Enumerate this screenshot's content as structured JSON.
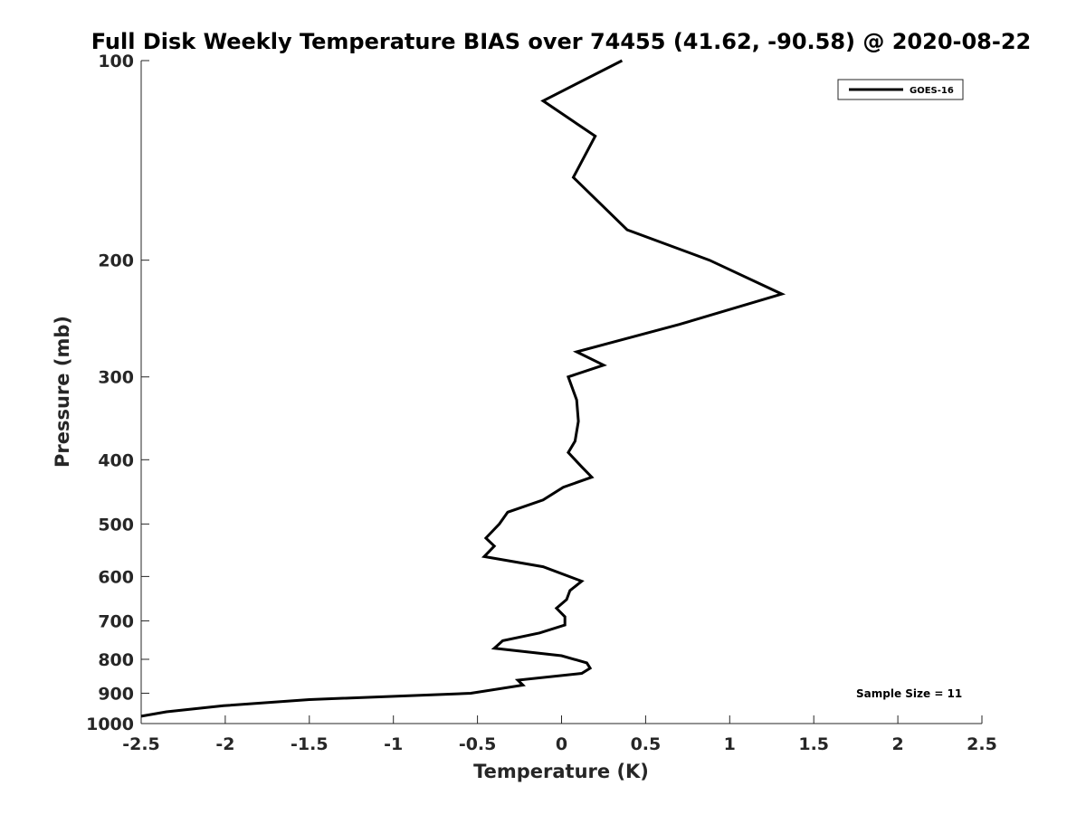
{
  "chart_data": {
    "type": "line",
    "title": "Full Disk Weekly Temperature BIAS over 74455 (41.62, -90.58) @ 2020-08-22",
    "xlabel": "Temperature (K)",
    "ylabel": "Pressure (mb)",
    "xlim": [
      -2.5,
      2.5
    ],
    "ylim": [
      100,
      1000
    ],
    "y_scale": "log",
    "y_reversed": true,
    "x_ticks": [
      -2.5,
      -2,
      -1.5,
      -1,
      -0.5,
      0,
      0.5,
      1,
      1.5,
      2,
      2.5
    ],
    "x_tick_labels": [
      "-2.5",
      "-2",
      "-1.5",
      "-1",
      "-0.5",
      "0",
      "0.5",
      "1",
      "1.5",
      "2",
      "2.5"
    ],
    "y_ticks": [
      100,
      200,
      300,
      400,
      500,
      600,
      700,
      800,
      900,
      1000
    ],
    "y_tick_labels": [
      "100",
      "200",
      "300",
      "400",
      "500",
      "600",
      "700",
      "800",
      "900",
      "1000"
    ],
    "grid": false,
    "legend_position": "top-right",
    "line_color": "#000000",
    "annotation": "Sample Size = 11",
    "series": [
      {
        "name": "GOES-16",
        "points": [
          {
            "x": 0.36,
            "p": 100
          },
          {
            "x": -0.11,
            "p": 115
          },
          {
            "x": 0.2,
            "p": 130
          },
          {
            "x": 0.07,
            "p": 150
          },
          {
            "x": 0.39,
            "p": 180
          },
          {
            "x": 0.88,
            "p": 200
          },
          {
            "x": 1.31,
            "p": 225
          },
          {
            "x": 0.7,
            "p": 250
          },
          {
            "x": 0.09,
            "p": 275
          },
          {
            "x": 0.25,
            "p": 288
          },
          {
            "x": 0.04,
            "p": 300
          },
          {
            "x": 0.09,
            "p": 325
          },
          {
            "x": 0.1,
            "p": 350
          },
          {
            "x": 0.08,
            "p": 375
          },
          {
            "x": 0.04,
            "p": 390
          },
          {
            "x": 0.12,
            "p": 410
          },
          {
            "x": 0.18,
            "p": 425
          },
          {
            "x": 0.01,
            "p": 440
          },
          {
            "x": -0.11,
            "p": 460
          },
          {
            "x": -0.32,
            "p": 480
          },
          {
            "x": -0.37,
            "p": 500
          },
          {
            "x": -0.45,
            "p": 525
          },
          {
            "x": -0.4,
            "p": 540
          },
          {
            "x": -0.46,
            "p": 560
          },
          {
            "x": -0.11,
            "p": 580
          },
          {
            "x": 0.12,
            "p": 610
          },
          {
            "x": 0.05,
            "p": 630
          },
          {
            "x": 0.03,
            "p": 650
          },
          {
            "x": -0.03,
            "p": 670
          },
          {
            "x": 0.02,
            "p": 690
          },
          {
            "x": 0.02,
            "p": 710
          },
          {
            "x": -0.13,
            "p": 730
          },
          {
            "x": -0.35,
            "p": 750
          },
          {
            "x": -0.4,
            "p": 770
          },
          {
            "x": 0.0,
            "p": 790
          },
          {
            "x": 0.15,
            "p": 810
          },
          {
            "x": 0.17,
            "p": 825
          },
          {
            "x": 0.12,
            "p": 840
          },
          {
            "x": -0.26,
            "p": 860
          },
          {
            "x": -0.23,
            "p": 875
          },
          {
            "x": -0.54,
            "p": 900
          },
          {
            "x": -1.5,
            "p": 920
          },
          {
            "x": -2.01,
            "p": 940
          },
          {
            "x": -2.35,
            "p": 960
          },
          {
            "x": -2.5,
            "p": 975
          }
        ]
      }
    ]
  }
}
